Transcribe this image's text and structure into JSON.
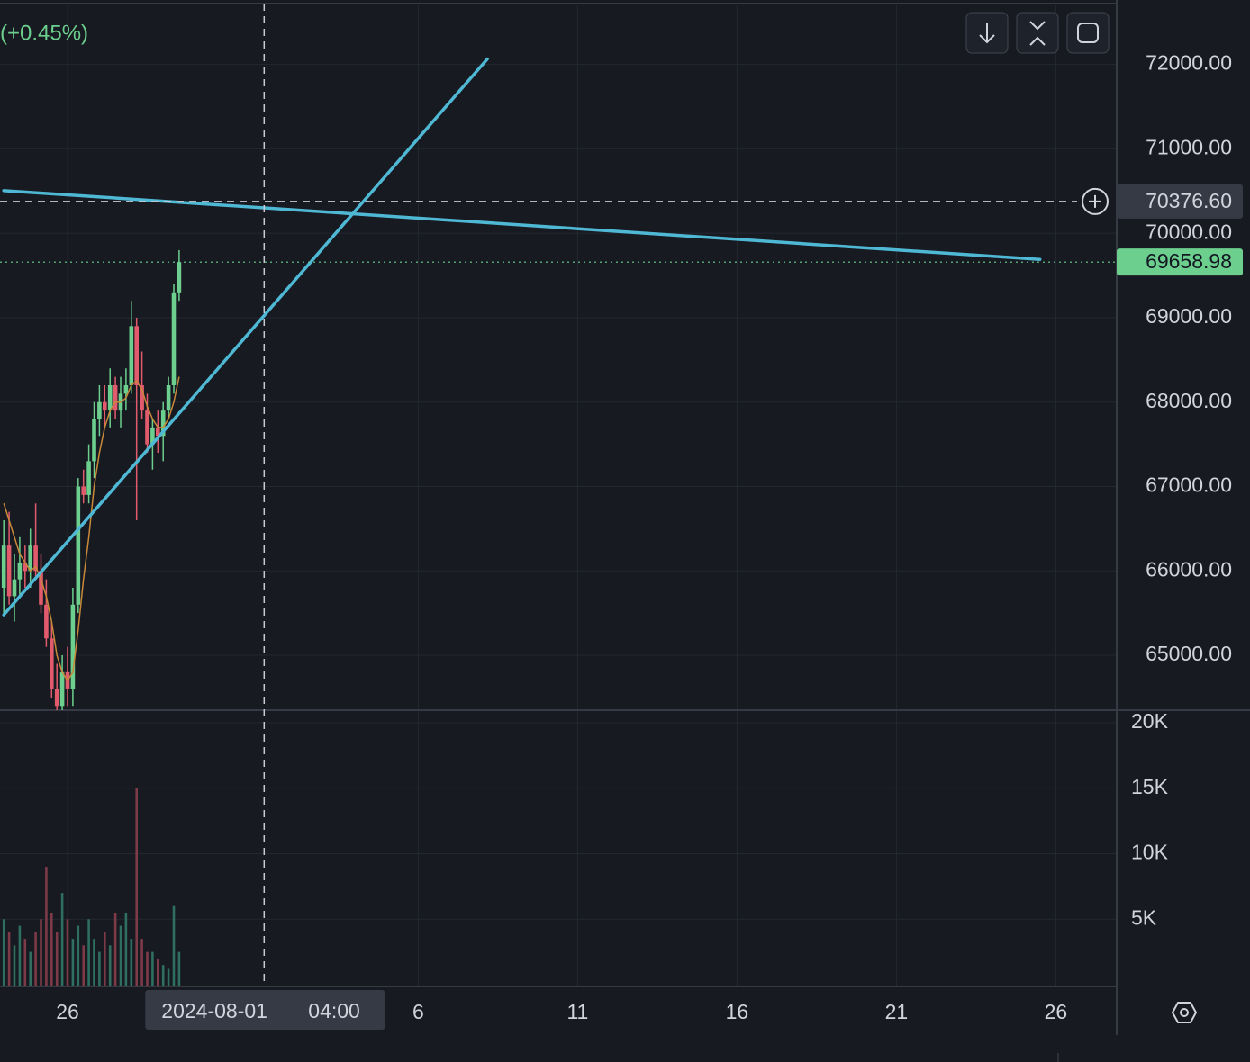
{
  "header": {
    "change": "(+0.45%)"
  },
  "chart_data": {
    "type": "candlestick",
    "up_color": "#6ccf8e",
    "down_color": "#e15b6d",
    "up_volume_color": "#2f6f5f",
    "down_volume_color": "#7d3a47",
    "ma_color": "#c8893a",
    "drawing_color": "#4fb8d4",
    "x": [
      "2024-07-24 00:00",
      "2024-07-24 04:00",
      "2024-07-24 08:00",
      "2024-07-24 12:00",
      "2024-07-24 16:00",
      "2024-07-24 20:00",
      "2024-07-25 00:00",
      "2024-07-25 04:00",
      "2024-07-25 08:00",
      "2024-07-25 12:00",
      "2024-07-25 16:00",
      "2024-07-25 20:00",
      "2024-07-26 00:00",
      "2024-07-26 04:00",
      "2024-07-26 08:00",
      "2024-07-26 12:00",
      "2024-07-26 16:00",
      "2024-07-26 20:00",
      "2024-07-27 00:00",
      "2024-07-27 04:00",
      "2024-07-27 08:00",
      "2024-07-27 12:00",
      "2024-07-27 16:00",
      "2024-07-27 20:00",
      "2024-07-28 00:00",
      "2024-07-28 04:00",
      "2024-07-28 08:00",
      "2024-07-28 12:00",
      "2024-07-28 16:00",
      "2024-07-28 20:00",
      "2024-07-29 00:00",
      "2024-07-29 04:00",
      "2024-07-29 08:00",
      "2024-07-29 12:00"
    ],
    "open": [
      65800,
      66300,
      65700,
      65900,
      66100,
      66000,
      66300,
      66000,
      65600,
      65200,
      64600,
      64400,
      64800,
      64600,
      65600,
      67000,
      66900,
      67300,
      67800,
      68000,
      67900,
      68200,
      67900,
      68100,
      68200,
      68900,
      68200,
      67900,
      67500,
      67700,
      67600,
      67900,
      68200,
      69300
    ],
    "high": [
      66600,
      66700,
      66200,
      66400,
      66300,
      66500,
      66800,
      66200,
      65900,
      65400,
      64900,
      65000,
      65100,
      65800,
      67100,
      67200,
      67500,
      68000,
      68200,
      68200,
      68400,
      68300,
      68300,
      68400,
      69200,
      69000,
      68600,
      68100,
      67800,
      67900,
      68000,
      68300,
      69400,
      69800
    ],
    "low": [
      65500,
      65600,
      65400,
      65700,
      65800,
      65800,
      65900,
      65500,
      65100,
      64500,
      64300,
      64300,
      64400,
      64400,
      65500,
      66800,
      66800,
      67100,
      67600,
      67700,
      67700,
      67800,
      67700,
      67900,
      68100,
      66600,
      67800,
      67400,
      67200,
      67400,
      67300,
      67800,
      68100,
      69200
    ],
    "close": [
      66300,
      65700,
      65900,
      66100,
      66000,
      66300,
      66000,
      65600,
      65200,
      64600,
      64400,
      64800,
      64600,
      65600,
      67000,
      66900,
      67300,
      67800,
      68000,
      67900,
      68200,
      67900,
      68100,
      68200,
      68900,
      68200,
      67900,
      67500,
      67700,
      67600,
      67900,
      68200,
      69300,
      69658.98
    ],
    "volume": [
      5000,
      4000,
      3000,
      4500,
      3500,
      2500,
      4000,
      5000,
      9000,
      5500,
      4000,
      7000,
      5000,
      3500,
      4500,
      3000,
      5000,
      3500,
      2500,
      4000,
      3000,
      5500,
      4500,
      5500,
      3500,
      15000,
      3500,
      2500,
      2500,
      2000,
      1500,
      1200,
      6000,
      2500
    ],
    "ma": [
      66800,
      66600,
      66400,
      66200,
      66100,
      66000,
      66050,
      65900,
      65700,
      65400,
      65000,
      64800,
      64700,
      64800,
      65300,
      65900,
      66400,
      67000,
      67400,
      67700,
      67900,
      68000,
      68000,
      68050,
      68200,
      68250,
      68150,
      67950,
      67800,
      67700,
      67700,
      67800,
      68000,
      68300
    ],
    "drawings": [
      {
        "from": [
          "2024-07-24 00:00",
          70505
        ],
        "to": [
          "2024-08-25 12:00",
          69690
        ]
      },
      {
        "from": [
          "2024-07-24 00:00",
          65480
        ],
        "to": [
          "2024-08-08 04:00",
          72064
        ]
      }
    ],
    "ylim": [
      64350,
      72700
    ],
    "yticks": [
      {
        "value": 72000,
        "label": "72000.00"
      },
      {
        "value": 71000,
        "label": "71000.00"
      },
      {
        "value": 70000,
        "label": "70000.00"
      },
      {
        "value": 69000,
        "label": "69000.00"
      },
      {
        "value": 68000,
        "label": "68000.00"
      },
      {
        "value": 67000,
        "label": "67000.00"
      },
      {
        "value": 66000,
        "label": "66000.00"
      },
      {
        "value": 65000,
        "label": "65000.00"
      }
    ],
    "vlim": [
      0,
      20000
    ],
    "vticks": [
      {
        "value": 20000,
        "label": "20K"
      },
      {
        "value": 15000,
        "label": "15K"
      },
      {
        "value": 10000,
        "label": "10K"
      },
      {
        "value": 5000,
        "label": "5K"
      }
    ],
    "xticks": [
      {
        "value": "2024-07-26 00:00",
        "label": "26"
      },
      {
        "value": "2024-08-06 00:00",
        "label": "6"
      },
      {
        "value": "2024-08-11 00:00",
        "label": "11"
      },
      {
        "value": "2024-08-16 00:00",
        "label": "16"
      },
      {
        "value": "2024-08-21 00:00",
        "label": "21"
      },
      {
        "value": "2024-08-26 00:00",
        "label": "26"
      }
    ],
    "last_price": {
      "value": 69658.98,
      "label": "69658.98"
    },
    "crosshair": {
      "x": "2024-08-01 04:00",
      "date_label": "2024-08-01",
      "time_label": "04:00",
      "price": 70376.6,
      "price_label": "70376.60"
    }
  }
}
